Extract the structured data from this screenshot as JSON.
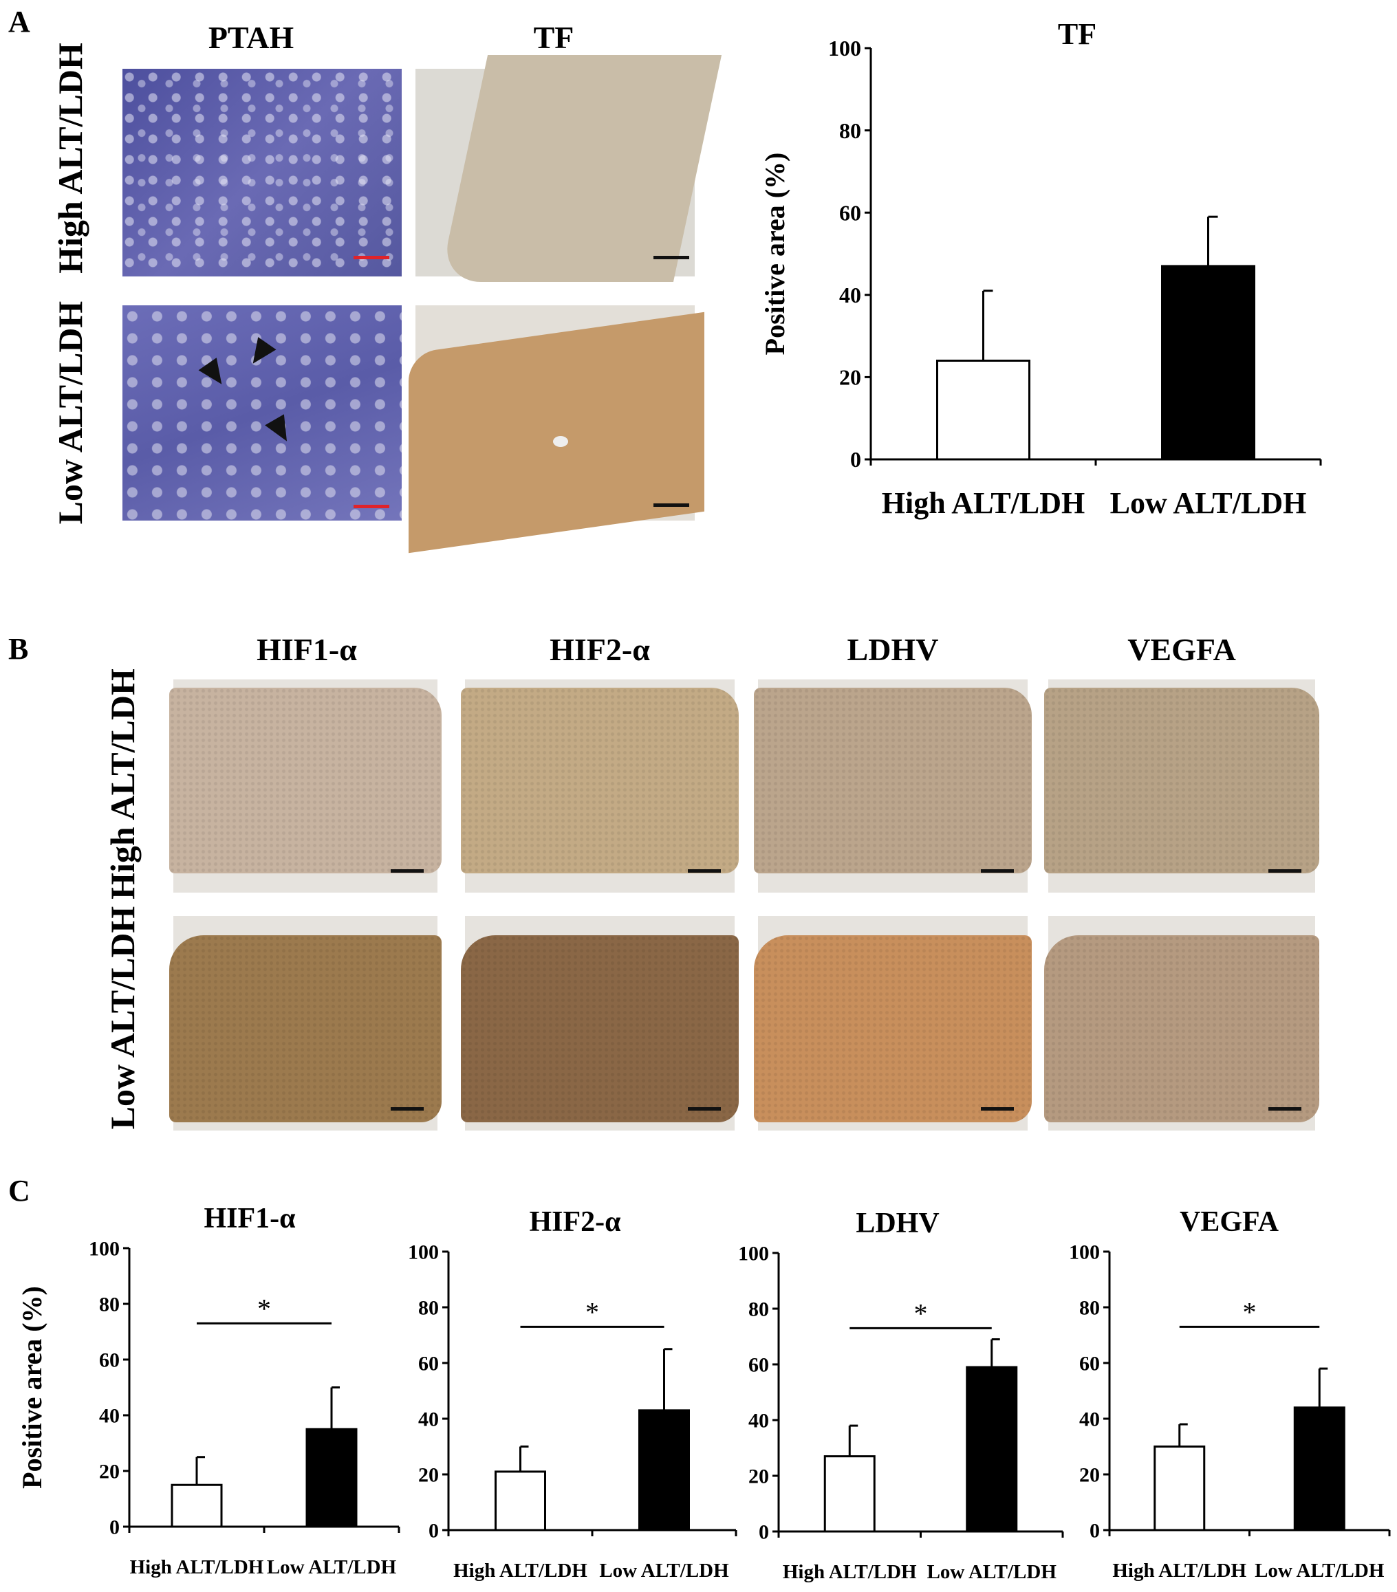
{
  "panel_labels": {
    "a": "A",
    "b": "B",
    "c": "C"
  },
  "panel_a": {
    "col_titles": [
      "PTAH",
      "TF"
    ],
    "row_labels": [
      "High ALT/LDH",
      "Low ALT/LDH"
    ],
    "colors": {
      "ptah_stain": "#5a5aa8",
      "tf_high": "#c9bda8",
      "tf_low": "#c59a6a",
      "scalebar_ptah": "#e0232a",
      "scalebar_tf": "#111111"
    },
    "arrows": "black-arrow-icon"
  },
  "panel_b": {
    "col_titles": [
      "HIF1-α",
      "HIF2-α",
      "LDHV",
      "VEGFA"
    ],
    "row_labels": [
      "High ALT/LDH",
      "Low ALT/LDH"
    ],
    "colors": {
      "high_row": [
        "#c7b3a0",
        "#c3aa85",
        "#bba58c",
        "#b7a286"
      ],
      "low_row": [
        "#9c7a4e",
        "#8a6746",
        "#c88f5c",
        "#b59a80"
      ]
    }
  },
  "chart_data": [
    {
      "type": "bar",
      "title": "TF",
      "ylabel": "Positive area (%)",
      "categories": [
        "High ALT/LDH",
        "Low ALT/LDH"
      ],
      "values": [
        24,
        47
      ],
      "errors": [
        17,
        12
      ],
      "bar_colors": [
        "#ffffff",
        "#000000"
      ],
      "ylim": [
        0,
        100
      ],
      "yticks": [
        "0",
        "20",
        "40",
        "60",
        "80",
        "100"
      ],
      "significance": ""
    },
    {
      "type": "bar",
      "title": "HIF1-α",
      "ylabel": "Positive area (%)",
      "categories": [
        "High ALT/LDH",
        "Low ALT/LDH"
      ],
      "values": [
        15,
        35
      ],
      "errors": [
        10,
        15
      ],
      "bar_colors": [
        "#ffffff",
        "#000000"
      ],
      "ylim": [
        0,
        100
      ],
      "yticks": [
        "0",
        "20",
        "40",
        "60",
        "80",
        "100"
      ],
      "significance": "*"
    },
    {
      "type": "bar",
      "title": "HIF2-α",
      "ylabel": "",
      "categories": [
        "High ALT/LDH",
        "Low ALT/LDH"
      ],
      "values": [
        21,
        43
      ],
      "errors": [
        9,
        22
      ],
      "bar_colors": [
        "#ffffff",
        "#000000"
      ],
      "ylim": [
        0,
        100
      ],
      "yticks": [
        "0",
        "20",
        "40",
        "60",
        "80",
        "100"
      ],
      "significance": "*"
    },
    {
      "type": "bar",
      "title": "LDHV",
      "ylabel": "",
      "categories": [
        "High ALT/LDH",
        "Low ALT/LDH"
      ],
      "values": [
        27,
        59
      ],
      "errors": [
        11,
        10
      ],
      "bar_colors": [
        "#ffffff",
        "#000000"
      ],
      "ylim": [
        0,
        100
      ],
      "yticks": [
        "0",
        "20",
        "40",
        "60",
        "80",
        "100"
      ],
      "significance": "*"
    },
    {
      "type": "bar",
      "title": "VEGFA",
      "ylabel": "",
      "categories": [
        "High ALT/LDH",
        "Low ALT/LDH"
      ],
      "values": [
        30,
        44
      ],
      "errors": [
        8,
        14
      ],
      "bar_colors": [
        "#ffffff",
        "#000000"
      ],
      "ylim": [
        0,
        100
      ],
      "yticks": [
        "0",
        "20",
        "40",
        "60",
        "80",
        "100"
      ],
      "significance": "*"
    }
  ]
}
